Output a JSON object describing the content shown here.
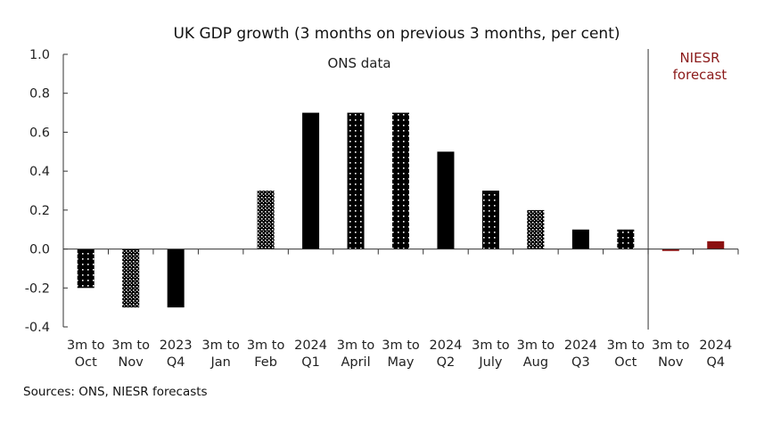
{
  "chart_data": {
    "type": "bar",
    "title": "UK GDP growth (3 months on previous 3 months, per cent)",
    "xlabel": "",
    "ylabel": "",
    "ylim": [
      -0.4,
      1.0
    ],
    "yticks": [
      1.0,
      0.8,
      0.6,
      0.4,
      0.2,
      0.0,
      -0.2,
      -0.4
    ],
    "ytick_labels": [
      "1.0",
      "0.8",
      "0.6",
      "0.4",
      "0.2",
      "0.0",
      "-0.2",
      "-0.4"
    ],
    "grid": false,
    "categories": [
      [
        "3m to",
        "Oct"
      ],
      [
        "3m to",
        "Nov"
      ],
      [
        "2023",
        "Q4"
      ],
      [
        "3m to",
        "Jan"
      ],
      [
        "3m to",
        "Feb"
      ],
      [
        "2024",
        "Q1"
      ],
      [
        "3m to",
        "April"
      ],
      [
        "3m to",
        "May"
      ],
      [
        "2024",
        "Q2"
      ],
      [
        "3m to",
        "July"
      ],
      [
        "3m to",
        "Aug"
      ],
      [
        "2024",
        "Q3"
      ],
      [
        "3m to",
        "Oct"
      ],
      [
        "3m to",
        "Nov"
      ],
      [
        "2024",
        "Q4"
      ]
    ],
    "values": [
      -0.2,
      -0.3,
      -0.3,
      0.0,
      0.3,
      0.7,
      0.7,
      0.7,
      0.5,
      0.3,
      0.2,
      0.1,
      0.1,
      -0.01,
      0.04
    ],
    "bar_styles": [
      "dots-sparse",
      "dots-dense",
      "solid",
      "dots-sparse",
      "dots-dense",
      "solid",
      "dots-sparse",
      "dots-sparse",
      "solid",
      "dots-sparse",
      "dots-dense",
      "solid",
      "dots-sparse",
      "forecast",
      "forecast"
    ],
    "series": [
      {
        "name": "ONS data",
        "source": "ONS"
      },
      {
        "name": "NIESR forecast",
        "source": "NIESR"
      }
    ],
    "annotations": {
      "ons_label": "ONS data",
      "forecast_label_line1": "NIESR",
      "forecast_label_line2": "forecast",
      "forecast_divider_after_category_index": 12
    },
    "colors": {
      "ons_bar": "#000000",
      "forecast_bar": "#8b1010",
      "forecast_text": "#8b1a1a"
    },
    "source_note": "Sources: ONS, NIESR forecasts"
  }
}
